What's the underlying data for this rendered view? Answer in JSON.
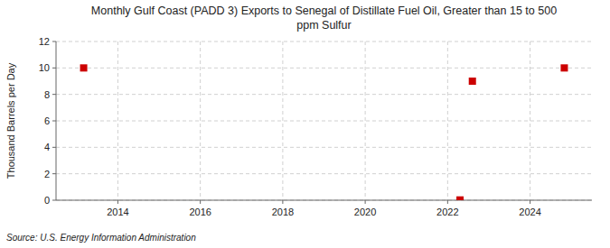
{
  "chart_data": {
    "type": "scatter",
    "title": "Monthly Gulf Coast (PADD 3) Exports to Senegal of Distillate Fuel Oil, Greater than 15 to 500\nppm Sulfur",
    "y_label": "Thousand Barrels per Day",
    "source": "Source: U.S. Energy Information Administration",
    "x": [
      2013.17,
      2022.3,
      2022.6,
      2024.83
    ],
    "values": [
      10.0,
      0.02,
      9.0,
      10.0
    ],
    "color": "#cc0000",
    "marker": "square",
    "xlim": [
      2012.5,
      2025.5
    ],
    "ylim": [
      0,
      12
    ],
    "xticks": [
      2014,
      2016,
      2018,
      2020,
      2022,
      2024
    ],
    "yticks": [
      0,
      2,
      4,
      6,
      8,
      10,
      12
    ],
    "grid": true
  }
}
